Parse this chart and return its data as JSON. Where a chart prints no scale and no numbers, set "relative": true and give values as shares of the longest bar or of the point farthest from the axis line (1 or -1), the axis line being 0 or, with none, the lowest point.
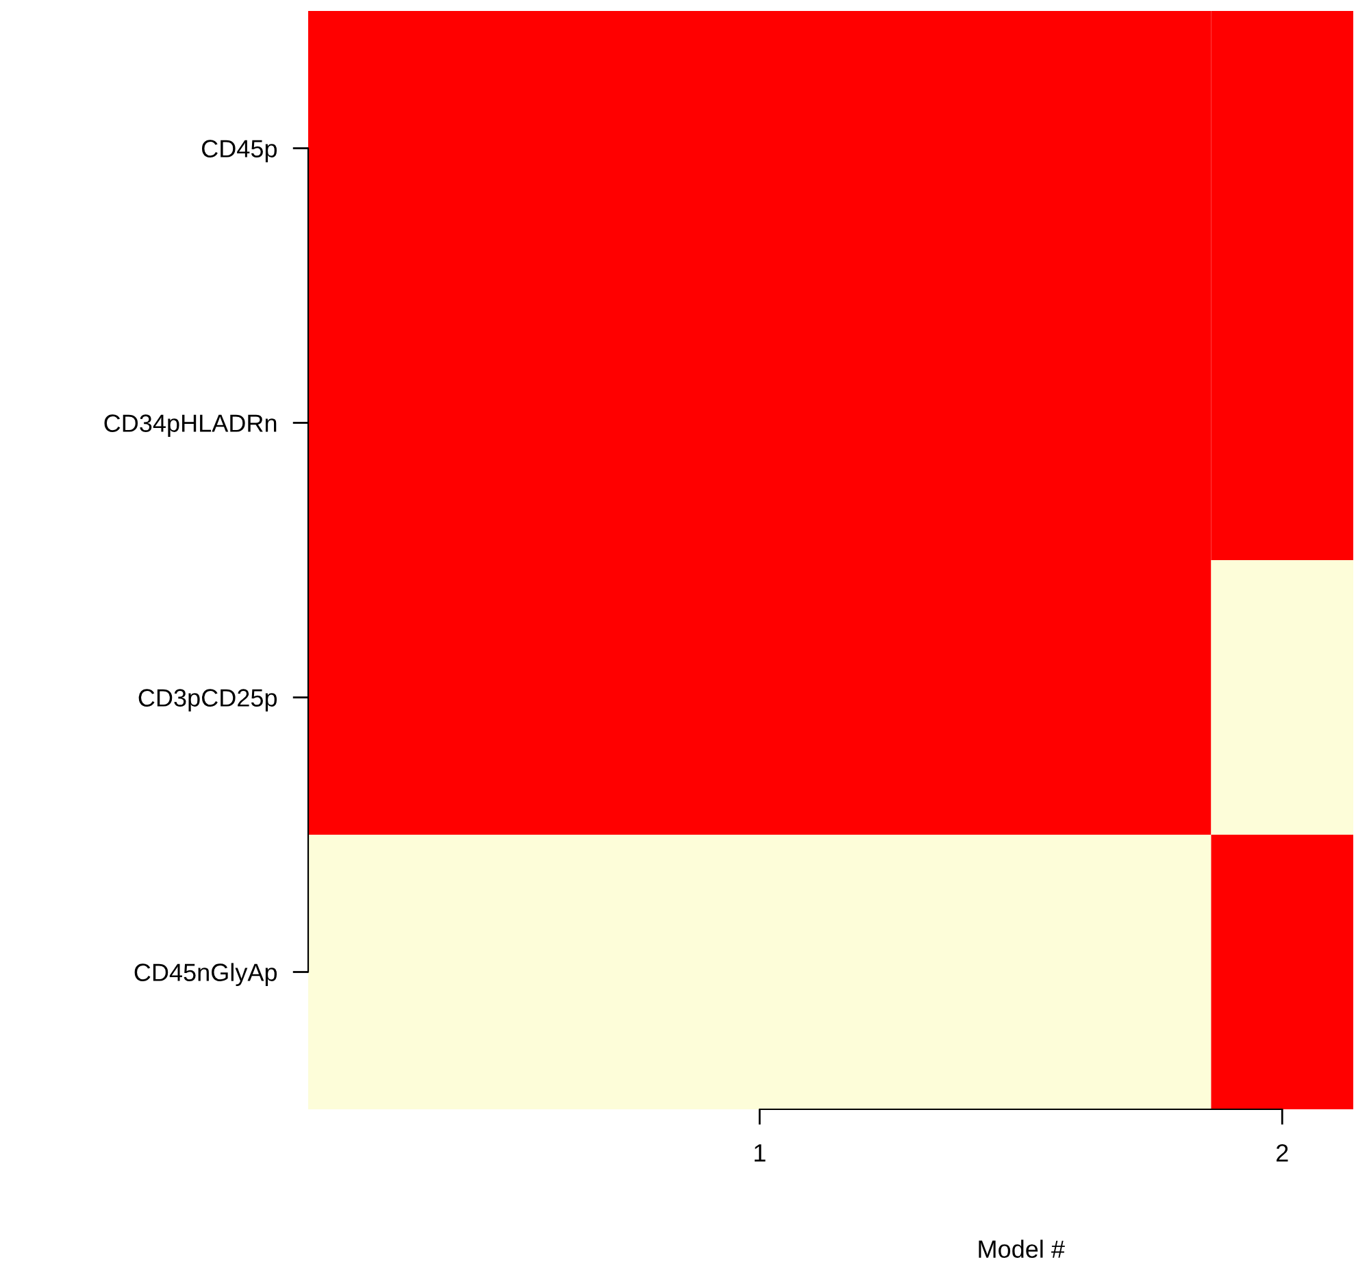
{
  "chart_data": {
    "type": "bar",
    "orientation": "horizontal",
    "stacked": true,
    "relative": true,
    "categories": [
      "CD45p",
      "CD34pHLADRn",
      "CD3pCD25p",
      "CD45nGlyAp"
    ],
    "series": [
      {
        "values": [
          0.864,
          0.864,
          0.864,
          0.864
        ],
        "colors": [
          "#ff0000",
          "#ff0000",
          "#ff0000",
          "#fdfdd9"
        ]
      },
      {
        "values": [
          0.136,
          0.136,
          0.136,
          0.136
        ],
        "colors": [
          "#ff0000",
          "#ff0000",
          "#fdfdd9",
          "#ff0000"
        ]
      }
    ],
    "annotations": [
      "1",
      "2",
      "Model #"
    ],
    "grid": false
  }
}
